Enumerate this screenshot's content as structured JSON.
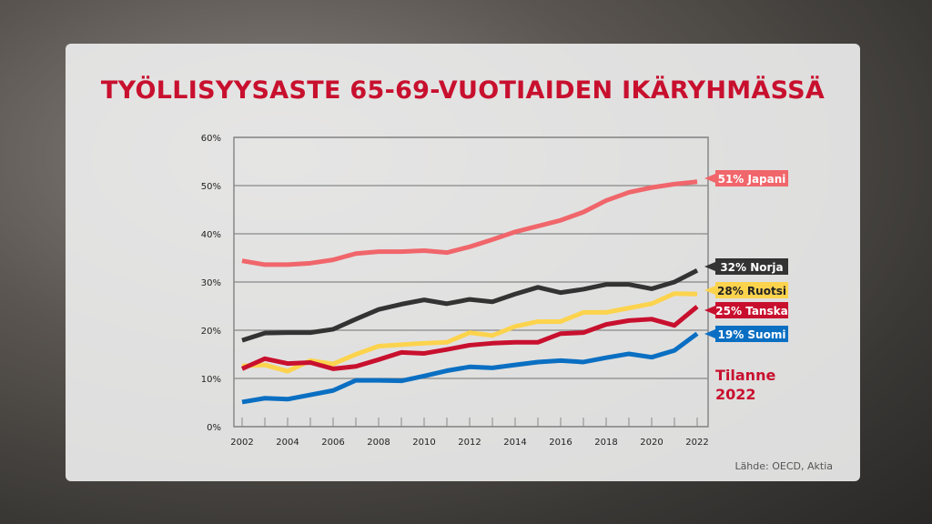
{
  "chart_data": {
    "type": "line",
    "title": "TYÖLLISYYSASTE 65-69-VUOTIAIDEN IKÄRYHMÄSSÄ",
    "x": [
      2002,
      2003,
      2004,
      2005,
      2006,
      2007,
      2008,
      2009,
      2010,
      2011,
      2012,
      2013,
      2014,
      2015,
      2016,
      2017,
      2018,
      2019,
      2020,
      2021,
      2022
    ],
    "xticks": [
      "2002",
      "2004",
      "2006",
      "2008",
      "2010",
      "2012",
      "2014",
      "2016",
      "2018",
      "2020",
      "2022"
    ],
    "yticks": [
      "0%",
      "10%",
      "20%",
      "30%",
      "40%",
      "50%",
      "60%"
    ],
    "ylim": [
      0,
      60
    ],
    "grid": true,
    "series": [
      {
        "name": "Japani",
        "label": "51% Japani",
        "color": "#f0666b",
        "values": [
          34.4,
          33.6,
          33.6,
          33.9,
          34.6,
          35.9,
          36.3,
          36.3,
          36.5,
          36.1,
          37.3,
          38.8,
          40.4,
          41.6,
          42.8,
          44.5,
          46.9,
          48.6,
          49.6,
          50.3,
          50.8
        ]
      },
      {
        "name": "Norja",
        "label": "32% Norja",
        "color": "#333333",
        "values": [
          17.9,
          19.4,
          19.5,
          19.5,
          20.2,
          22.3,
          24.3,
          25.4,
          26.3,
          25.5,
          26.4,
          25.9,
          27.5,
          28.9,
          27.8,
          28.5,
          29.5,
          29.5,
          28.6,
          30.0,
          32.4
        ]
      },
      {
        "name": "Ruotsi",
        "label": "28% Ruotsi",
        "color": "#fcd34d",
        "values": [
          12.6,
          12.8,
          11.5,
          13.7,
          13.0,
          15.0,
          16.7,
          17.0,
          17.3,
          17.5,
          19.5,
          18.9,
          20.8,
          21.8,
          21.8,
          23.7,
          23.7,
          24.6,
          25.5,
          27.6,
          27.5
        ]
      },
      {
        "name": "Tanska",
        "label": "25% Tanska",
        "color": "#c8102e",
        "values": [
          12.0,
          14.1,
          13.1,
          13.3,
          12.0,
          12.5,
          13.9,
          15.4,
          15.2,
          16.0,
          16.9,
          17.3,
          17.5,
          17.5,
          19.3,
          19.5,
          21.2,
          22.0,
          22.3,
          21.0,
          24.9
        ]
      },
      {
        "name": "Suomi",
        "label": "19% Suomi",
        "color": "#0a6fc2",
        "values": [
          5.1,
          5.9,
          5.7,
          6.6,
          7.5,
          9.6,
          9.6,
          9.5,
          10.5,
          11.6,
          12.4,
          12.2,
          12.8,
          13.4,
          13.7,
          13.4,
          14.3,
          15.1,
          14.4,
          15.8,
          19.3
        ]
      }
    ]
  },
  "status_line1": "Tilanne",
  "status_line2": "2022",
  "source": "Lähde: OECD, Aktia"
}
